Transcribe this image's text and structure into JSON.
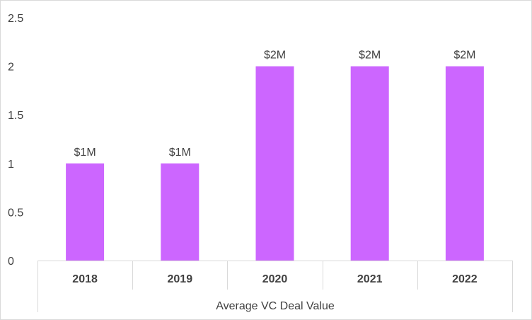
{
  "chart_data": {
    "type": "bar",
    "categories": [
      "2018",
      "2019",
      "2020",
      "2021",
      "2022"
    ],
    "values": [
      1,
      1,
      2,
      2,
      2
    ],
    "data_labels": [
      "$1M",
      "$1M",
      "$2M",
      "$2M",
      "$2M"
    ],
    "y_ticks": [
      "0",
      "0.5",
      "1",
      "1.5",
      "2",
      "2.5"
    ],
    "ylim": [
      0,
      2.5
    ],
    "xlabel": "Average VC Deal Value",
    "ylabel": "",
    "title": "",
    "grid": false,
    "legend": "none",
    "colors": {
      "bar": "#cc66ff",
      "axis": "#d9d9d9",
      "text": "#404040"
    }
  }
}
